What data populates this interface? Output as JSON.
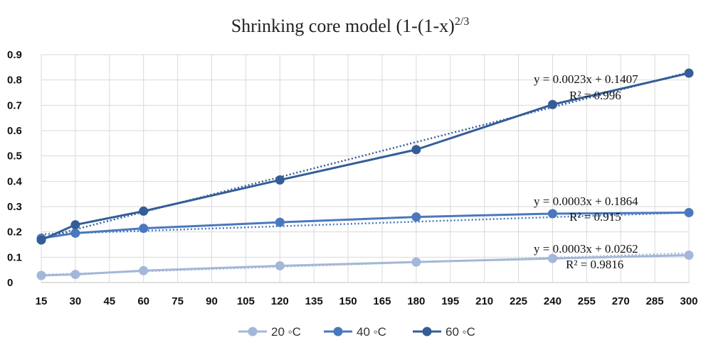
{
  "chart_data": {
    "type": "line",
    "title": "Shrinking core model (1-(1-x)",
    "title_superscript": "2/3",
    "x_ticks": [
      "15",
      "30",
      "45",
      "60",
      "75",
      "90",
      "105",
      "120",
      "135",
      "150",
      "165",
      "180",
      "195",
      "210",
      "225",
      "240",
      "255",
      "270",
      "285",
      "300"
    ],
    "y_ticks": [
      "0",
      "0.1",
      "0.2",
      "0.3",
      "0.4",
      "0.5",
      "0.6",
      "0.7",
      "0.8",
      "0.9"
    ],
    "ylim": [
      0,
      0.9
    ],
    "grid": true,
    "legend_position": "bottom",
    "series": [
      {
        "name": "20 ◦C",
        "color": "#a3b7d8",
        "x": [
          15,
          30,
          60,
          120,
          180,
          240,
          300
        ],
        "y": [
          0.028,
          0.032,
          0.047,
          0.066,
          0.081,
          0.095,
          0.108
        ],
        "trend_equation": "y = 0.0003x + 0.0262",
        "trend_r2": "R² = 0.9816",
        "trend_slope": 0.0003,
        "trend_intercept": 0.0262
      },
      {
        "name": "40 ◦C",
        "color": "#4a78bd",
        "x": [
          15,
          30,
          60,
          120,
          180,
          240,
          300
        ],
        "y": [
          0.175,
          0.195,
          0.214,
          0.238,
          0.259,
          0.272,
          0.276
        ],
        "trend_equation": "y = 0.0003x + 0.1864",
        "trend_r2": "R² = 0.915",
        "trend_slope": 0.0003,
        "trend_intercept": 0.1864
      },
      {
        "name": "60 ◦C",
        "color": "#345d98",
        "x": [
          15,
          30,
          60,
          120,
          180,
          240,
          300
        ],
        "y": [
          0.168,
          0.228,
          0.282,
          0.405,
          0.525,
          0.703,
          0.827
        ],
        "trend_equation": "y = 0.0023x + 0.1407",
        "trend_r2": "R² = 0.996",
        "trend_slope": 0.0023,
        "trend_intercept": 0.1407
      }
    ]
  }
}
